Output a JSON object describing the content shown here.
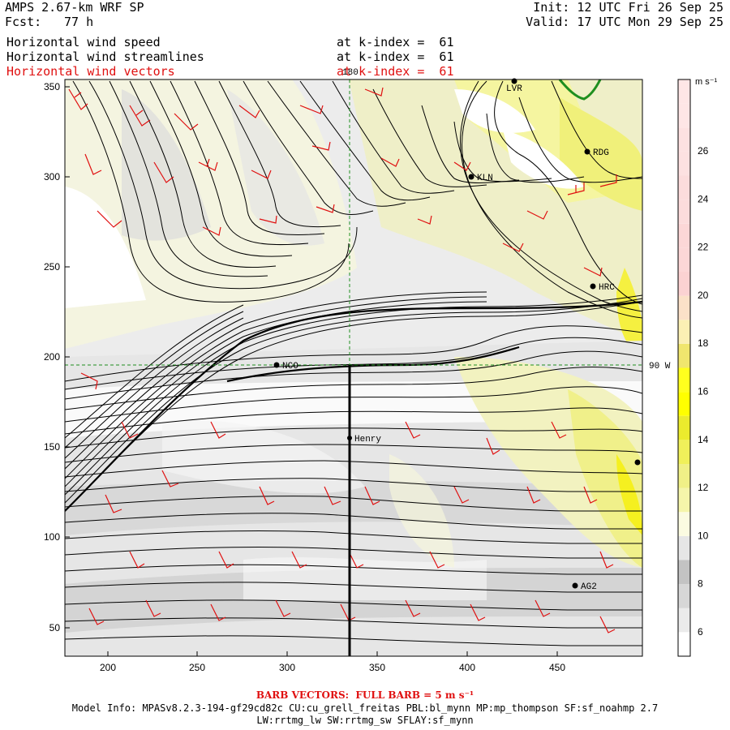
{
  "header": {
    "model": "AMPS 2.67-km WRF SP",
    "fcst_label": "Fcst:",
    "fcst_value": "77 h",
    "init": "Init: 12 UTC Fri 26 Sep 25",
    "valid": "Valid: 17 UTC Mon 29 Sep 25",
    "fields": [
      {
        "name": "Horizontal wind speed",
        "level": "at k-index =  61",
        "color": "#000000"
      },
      {
        "name": "Horizontal wind streamlines",
        "level": "at k-index =  61",
        "color": "#000000"
      },
      {
        "name": "Horizontal wind vectors",
        "level": "at k-index =  61",
        "color": "#e01010"
      }
    ]
  },
  "map": {
    "x_ticks": [
      "200",
      "250",
      "300",
      "350",
      "400",
      "450"
    ],
    "y_ticks": [
      "50",
      "100",
      "150",
      "200",
      "250",
      "300",
      "350"
    ],
    "meridian_label": "180",
    "parallel_label": "90 W",
    "stations": [
      {
        "id": "LVR"
      },
      {
        "id": "RDG"
      },
      {
        "id": "KLN"
      },
      {
        "id": "HRC"
      },
      {
        "id": "NCO"
      },
      {
        "id": "Henry"
      },
      {
        "id": "AG2"
      }
    ]
  },
  "colorbar": {
    "units": "m s⁻¹",
    "labels": [
      "26",
      "24",
      "22",
      "20",
      "18",
      "16",
      "14",
      "12",
      "10",
      "8",
      "6"
    ],
    "colors": [
      "#ffffff",
      "#ebebeb",
      "#d2d2d2",
      "#c2c2c2",
      "#e0e0e0",
      "#fbfbd0",
      "#f5f5a5",
      "#f0f083",
      "#f5f55a",
      "#f5f500",
      "#ffff00",
      "#ffff00",
      "#f5eb5a",
      "#fbf0a5",
      "#fbe6c3",
      "#fbd2d2",
      "#fbd2d2",
      "#fbd2d2",
      "#fbd2d2",
      "#fbd2d2",
      "#fbd2d2",
      "#fbd2d2",
      "#fbd2d2",
      "#fbd2d2"
    ],
    "swatch_colors": [
      "#ffffff",
      "#ebebeb",
      "#d7d7d7",
      "#c3c3c3",
      "#e6e6e6",
      "#fbfbe1",
      "#f5f5aa",
      "#f0f087",
      "#f0f05a",
      "#ebeb2d",
      "#ffff00",
      "#ffff1e",
      "#f0e66e",
      "#fbf0b4",
      "#fbe1c8",
      "#fbd2d2",
      "#fcd7d7",
      "#fcd7d7",
      "#fcdcdc",
      "#fcdcdc",
      "#fde1e1",
      "#fde1e1",
      "#fee6e6",
      "#fee6e6"
    ]
  },
  "footer": {
    "barb_note": "BARB VECTORS:  FULL BARB = 5 m s⁻¹",
    "model_info_1": "Model Info: MPASv8.2.3-194-gf29cd82c CU:cu_grell_freitas PBL:bl_mynn MP:mp_thompson SF:sf_noahmp 2.7",
    "model_info_2": "LW:rrtmg_lw SW:rrtmg_sw SFLAY:sf_mynn"
  }
}
